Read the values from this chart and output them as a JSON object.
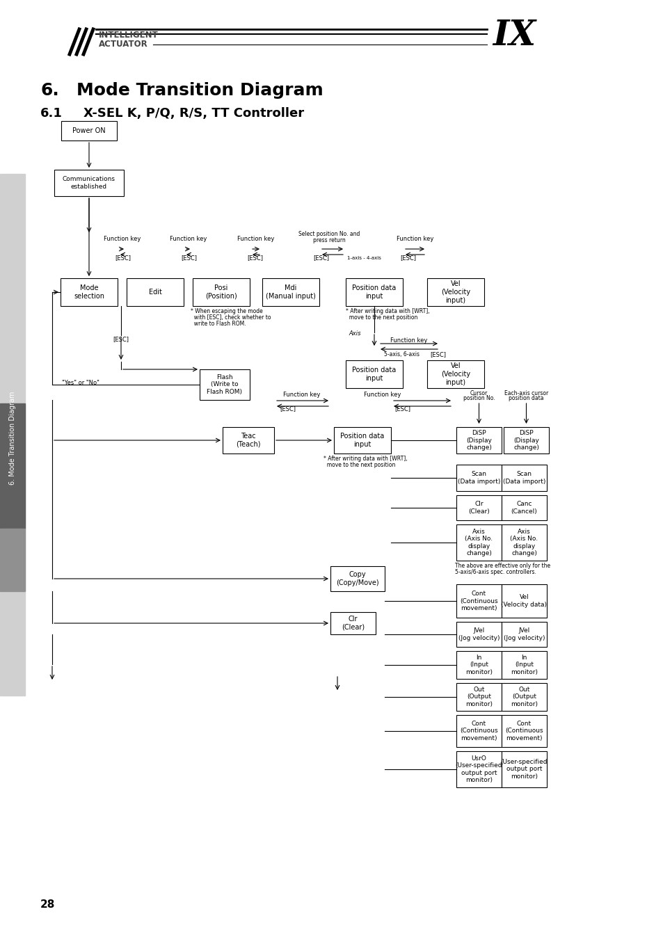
{
  "title_num": "6.",
  "title_text": "Mode Transition Diagram",
  "subtitle_num": "6.1",
  "subtitle_text": "X-SEL K, P/Q, R/S, TT Controller",
  "page_number": "28",
  "sidebar_text": "6. Mode Transition Diagram",
  "background": "#ffffff"
}
